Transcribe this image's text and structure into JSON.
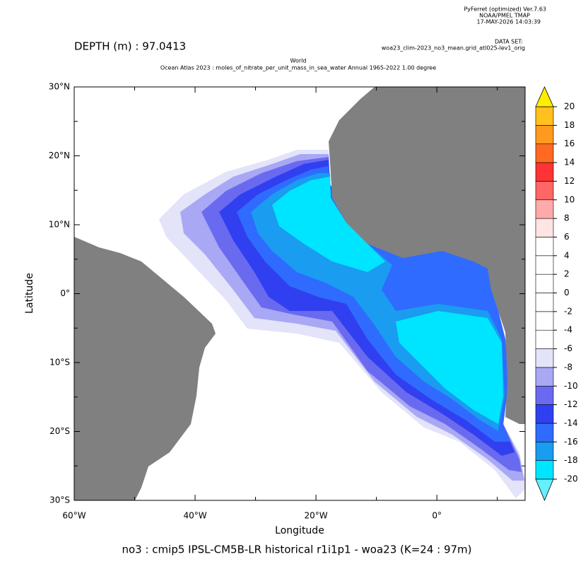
{
  "header": {
    "software": "PyFerret (optimized) Ver.7.63",
    "org": "NOAA/PMEL TMAP",
    "timestamp": "17-MAY-2026 14:03:39",
    "dataset_label": "DATA SET:",
    "dataset": "woa23_clim-2023_no3_mean.grid_atl025-lev1_orig",
    "depth": "DEPTH (m) : 97.0413",
    "title_line1": "World",
    "title_line2": "Ocean Atlas 2023 : moles_of_nitrate_per_unit_mass_in_sea_water Annual 1965-2022 1.00 degree"
  },
  "map": {
    "xlim": [
      -60,
      14.6
    ],
    "ylim": [
      -30,
      30
    ],
    "xticks": [
      {
        "value": -60,
        "label": "60°W"
      },
      {
        "value": -40,
        "label": "40°W"
      },
      {
        "value": -20,
        "label": "20°W"
      },
      {
        "value": 0,
        "label": "0°"
      }
    ],
    "xminor": [
      -50,
      -30,
      -10,
      10
    ],
    "yticks": [
      {
        "value": 30,
        "label": "30°N"
      },
      {
        "value": 20,
        "label": "20°N"
      },
      {
        "value": 10,
        "label": "10°N"
      },
      {
        "value": 0,
        "label": "0°"
      },
      {
        "value": -10,
        "label": "10°S"
      },
      {
        "value": -20,
        "label": "20°S"
      },
      {
        "value": -30,
        "label": "30°S"
      }
    ],
    "yminor": [
      25,
      15,
      5,
      -5,
      -15,
      -25
    ],
    "x_label": "Longitude",
    "y_label": "Latitude",
    "land_color": "#808080"
  },
  "colorbar": {
    "levels": [
      -20,
      -18,
      -16,
      -14,
      -12,
      -10,
      -8,
      -6,
      -4,
      -2,
      0,
      2,
      4,
      6,
      8,
      10,
      12,
      14,
      16,
      18,
      20
    ],
    "colors": [
      "#00e5ff",
      "#1a9cf0",
      "#2f6bff",
      "#3040f0",
      "#6a6af0",
      "#a8a8f5",
      "#e3e3fa",
      "#ffffff",
      "#ffffff",
      "#ffffff",
      "#ffffff",
      "#ffffff",
      "#ffffff",
      "#ffe4e4",
      "#ffaaaa",
      "#ff6666",
      "#ff3333",
      "#ff6a20",
      "#ff9a20",
      "#ffc020"
    ],
    "under_color": "#66f0ff",
    "over_color": "#ffee00"
  },
  "footer": "no3 : cmip5 IPSL-CM5B-LR historical r1i1p1 - woa23  (K=24 : 97m)"
}
